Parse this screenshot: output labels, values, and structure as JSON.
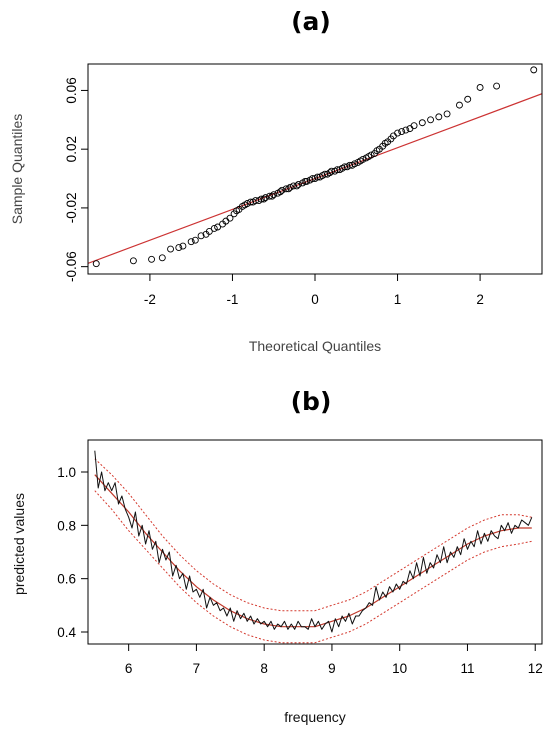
{
  "chart_data": [
    {
      "panel_label": "(a)",
      "type": "scatter",
      "title": "",
      "xlabel": "Theoretical Quantiles",
      "ylabel": "Sample Quantiles",
      "xlim": [
        -2.75,
        2.75
      ],
      "ylim": [
        -0.065,
        0.078
      ],
      "xticks": [
        -2,
        -1,
        0,
        1,
        2
      ],
      "xtick_labels": [
        "-2",
        "-1",
        "0",
        "1",
        "2"
      ],
      "yticks": [
        -0.06,
        -0.02,
        0.02,
        0.06
      ],
      "ytick_labels": [
        "-0.06",
        "-0.02",
        "0.02",
        "0.06"
      ],
      "grid": false,
      "reference_line": {
        "intercept": 0.0,
        "slope": 0.021,
        "color": "#cc3333"
      },
      "series": [
        {
          "marker": "open-circle",
          "x": [
            -2.65,
            -2.2,
            -1.98,
            -1.85,
            -1.75,
            -1.65,
            -1.6,
            -1.5,
            -1.45,
            -1.38,
            -1.32,
            -1.28,
            -1.22,
            -1.18,
            -1.12,
            -1.08,
            -1.03,
            -0.98,
            -0.95,
            -0.92,
            -0.88,
            -0.85,
            -0.82,
            -0.78,
            -0.75,
            -0.72,
            -0.68,
            -0.65,
            -0.62,
            -0.6,
            -0.55,
            -0.52,
            -0.5,
            -0.45,
            -0.42,
            -0.4,
            -0.35,
            -0.32,
            -0.3,
            -0.26,
            -0.22,
            -0.2,
            -0.15,
            -0.12,
            -0.1,
            -0.06,
            -0.03,
            0.0,
            0.03,
            0.06,
            0.09,
            0.12,
            0.15,
            0.18,
            0.2,
            0.24,
            0.27,
            0.3,
            0.33,
            0.36,
            0.39,
            0.42,
            0.45,
            0.48,
            0.52,
            0.55,
            0.58,
            0.62,
            0.65,
            0.68,
            0.72,
            0.75,
            0.78,
            0.82,
            0.85,
            0.88,
            0.92,
            0.95,
            1.0,
            1.05,
            1.1,
            1.15,
            1.2,
            1.3,
            1.4,
            1.5,
            1.6,
            1.75,
            1.85,
            2.0,
            2.2,
            2.65
          ],
          "y": [
            -0.058,
            -0.056,
            -0.055,
            -0.054,
            -0.048,
            -0.047,
            -0.046,
            -0.043,
            -0.042,
            -0.039,
            -0.038,
            -0.036,
            -0.034,
            -0.033,
            -0.031,
            -0.029,
            -0.027,
            -0.024,
            -0.022,
            -0.021,
            -0.019,
            -0.018,
            -0.017,
            -0.016,
            -0.016,
            -0.015,
            -0.015,
            -0.014,
            -0.014,
            -0.013,
            -0.012,
            -0.012,
            -0.011,
            -0.01,
            -0.009,
            -0.008,
            -0.007,
            -0.007,
            -0.006,
            -0.005,
            -0.005,
            -0.004,
            -0.003,
            -0.002,
            -0.002,
            -0.001,
            0.0,
            0.0,
            0.001,
            0.001,
            0.002,
            0.003,
            0.003,
            0.004,
            0.005,
            0.005,
            0.006,
            0.006,
            0.007,
            0.008,
            0.008,
            0.009,
            0.009,
            0.01,
            0.011,
            0.012,
            0.013,
            0.014,
            0.015,
            0.016,
            0.017,
            0.019,
            0.02,
            0.022,
            0.024,
            0.025,
            0.027,
            0.029,
            0.031,
            0.032,
            0.033,
            0.034,
            0.036,
            0.038,
            0.04,
            0.042,
            0.044,
            0.05,
            0.054,
            0.062,
            0.063,
            0.074
          ]
        }
      ]
    },
    {
      "panel_label": "(b)",
      "type": "line",
      "title": "",
      "xlabel": "frequency",
      "ylabel": "predicted values",
      "xlim": [
        5.4,
        12.1
      ],
      "ylim": [
        0.355,
        1.12
      ],
      "xticks": [
        6,
        7,
        8,
        9,
        10,
        11,
        12
      ],
      "xtick_labels": [
        "6",
        "7",
        "8",
        "9",
        "10",
        "11",
        "12"
      ],
      "yticks": [
        0.4,
        0.6,
        0.8,
        1.0
      ],
      "ytick_labels": [
        "0.4",
        "0.6",
        "0.8",
        "1.0"
      ],
      "grid": false,
      "series": [
        {
          "style": "solid-black-observed",
          "x": [
            5.5,
            5.55,
            5.6,
            5.65,
            5.7,
            5.75,
            5.8,
            5.85,
            5.9,
            5.95,
            6.0,
            6.05,
            6.1,
            6.15,
            6.2,
            6.25,
            6.3,
            6.35,
            6.4,
            6.45,
            6.5,
            6.55,
            6.6,
            6.65,
            6.7,
            6.75,
            6.8,
            6.85,
            6.9,
            6.95,
            7.0,
            7.05,
            7.1,
            7.15,
            7.2,
            7.25,
            7.3,
            7.35,
            7.4,
            7.45,
            7.5,
            7.55,
            7.6,
            7.65,
            7.7,
            7.75,
            7.8,
            7.85,
            7.9,
            7.95,
            8.0,
            8.05,
            8.1,
            8.15,
            8.2,
            8.25,
            8.3,
            8.35,
            8.4,
            8.45,
            8.5,
            8.55,
            8.6,
            8.65,
            8.7,
            8.75,
            8.8,
            8.85,
            8.9,
            8.95,
            9.0,
            9.05,
            9.1,
            9.15,
            9.2,
            9.25,
            9.3,
            9.35,
            9.4,
            9.45,
            9.5,
            9.55,
            9.6,
            9.65,
            9.7,
            9.75,
            9.8,
            9.85,
            9.9,
            9.95,
            10.0,
            10.05,
            10.1,
            10.15,
            10.2,
            10.25,
            10.3,
            10.35,
            10.4,
            10.45,
            10.5,
            10.55,
            10.6,
            10.65,
            10.7,
            10.75,
            10.8,
            10.85,
            10.9,
            10.95,
            11.0,
            11.05,
            11.1,
            11.15,
            11.2,
            11.25,
            11.3,
            11.35,
            11.4,
            11.45,
            11.5,
            11.55,
            11.6,
            11.65,
            11.7,
            11.75,
            11.8,
            11.85,
            11.9,
            11.95
          ],
          "y": [
            1.08,
            0.94,
            1.0,
            0.93,
            0.96,
            0.93,
            0.96,
            0.88,
            0.91,
            0.86,
            0.83,
            0.79,
            0.85,
            0.76,
            0.8,
            0.73,
            0.78,
            0.71,
            0.74,
            0.66,
            0.71,
            0.67,
            0.7,
            0.61,
            0.65,
            0.6,
            0.62,
            0.56,
            0.61,
            0.55,
            0.56,
            0.53,
            0.56,
            0.49,
            0.53,
            0.5,
            0.51,
            0.48,
            0.49,
            0.46,
            0.49,
            0.44,
            0.48,
            0.45,
            0.47,
            0.44,
            0.46,
            0.43,
            0.45,
            0.43,
            0.44,
            0.42,
            0.44,
            0.41,
            0.43,
            0.42,
            0.44,
            0.41,
            0.43,
            0.41,
            0.44,
            0.42,
            0.42,
            0.41,
            0.45,
            0.42,
            0.44,
            0.41,
            0.43,
            0.44,
            0.4,
            0.45,
            0.42,
            0.46,
            0.44,
            0.47,
            0.43,
            0.46,
            0.46,
            0.48,
            0.49,
            0.51,
            0.5,
            0.57,
            0.52,
            0.55,
            0.53,
            0.57,
            0.55,
            0.58,
            0.56,
            0.59,
            0.58,
            0.63,
            0.6,
            0.66,
            0.61,
            0.68,
            0.62,
            0.66,
            0.64,
            0.69,
            0.66,
            0.72,
            0.66,
            0.7,
            0.68,
            0.72,
            0.69,
            0.75,
            0.71,
            0.74,
            0.72,
            0.78,
            0.73,
            0.77,
            0.74,
            0.78,
            0.76,
            0.75,
            0.8,
            0.78,
            0.81,
            0.77,
            0.8,
            0.79,
            0.82,
            0.81,
            0.8,
            0.83
          ]
        },
        {
          "style": "solid-red-fitted",
          "x": [
            5.5,
            5.75,
            6.0,
            6.25,
            6.5,
            6.75,
            7.0,
            7.25,
            7.5,
            7.75,
            8.0,
            8.25,
            8.5,
            8.75,
            9.0,
            9.25,
            9.5,
            9.75,
            10.0,
            10.25,
            10.5,
            10.75,
            11.0,
            11.25,
            11.5,
            11.75,
            11.95
          ],
          "y": [
            0.99,
            0.92,
            0.85,
            0.77,
            0.7,
            0.63,
            0.57,
            0.52,
            0.48,
            0.45,
            0.43,
            0.42,
            0.42,
            0.42,
            0.44,
            0.46,
            0.49,
            0.53,
            0.57,
            0.61,
            0.65,
            0.69,
            0.73,
            0.76,
            0.78,
            0.79,
            0.79
          ]
        },
        {
          "style": "dotted-red-upper-band",
          "x": [
            5.5,
            5.75,
            6.0,
            6.25,
            6.5,
            6.75,
            7.0,
            7.25,
            7.5,
            7.75,
            8.0,
            8.25,
            8.5,
            8.75,
            9.0,
            9.25,
            9.5,
            9.75,
            10.0,
            10.25,
            10.5,
            10.75,
            11.0,
            11.25,
            11.5,
            11.75,
            11.95
          ],
          "y": [
            1.05,
            0.99,
            0.92,
            0.84,
            0.76,
            0.69,
            0.63,
            0.58,
            0.54,
            0.51,
            0.49,
            0.48,
            0.48,
            0.48,
            0.5,
            0.52,
            0.55,
            0.59,
            0.63,
            0.67,
            0.71,
            0.75,
            0.79,
            0.82,
            0.84,
            0.84,
            0.83
          ]
        },
        {
          "style": "dotted-red-lower-band",
          "x": [
            5.5,
            5.75,
            6.0,
            6.25,
            6.5,
            6.75,
            7.0,
            7.25,
            7.5,
            7.75,
            8.0,
            8.25,
            8.5,
            8.75,
            9.0,
            9.25,
            9.5,
            9.75,
            10.0,
            10.25,
            10.5,
            10.75,
            11.0,
            11.25,
            11.5,
            11.75,
            11.95
          ],
          "y": [
            0.93,
            0.86,
            0.78,
            0.71,
            0.64,
            0.57,
            0.51,
            0.46,
            0.42,
            0.39,
            0.37,
            0.36,
            0.36,
            0.36,
            0.38,
            0.4,
            0.43,
            0.47,
            0.51,
            0.55,
            0.59,
            0.63,
            0.67,
            0.7,
            0.72,
            0.73,
            0.74
          ]
        }
      ]
    }
  ]
}
